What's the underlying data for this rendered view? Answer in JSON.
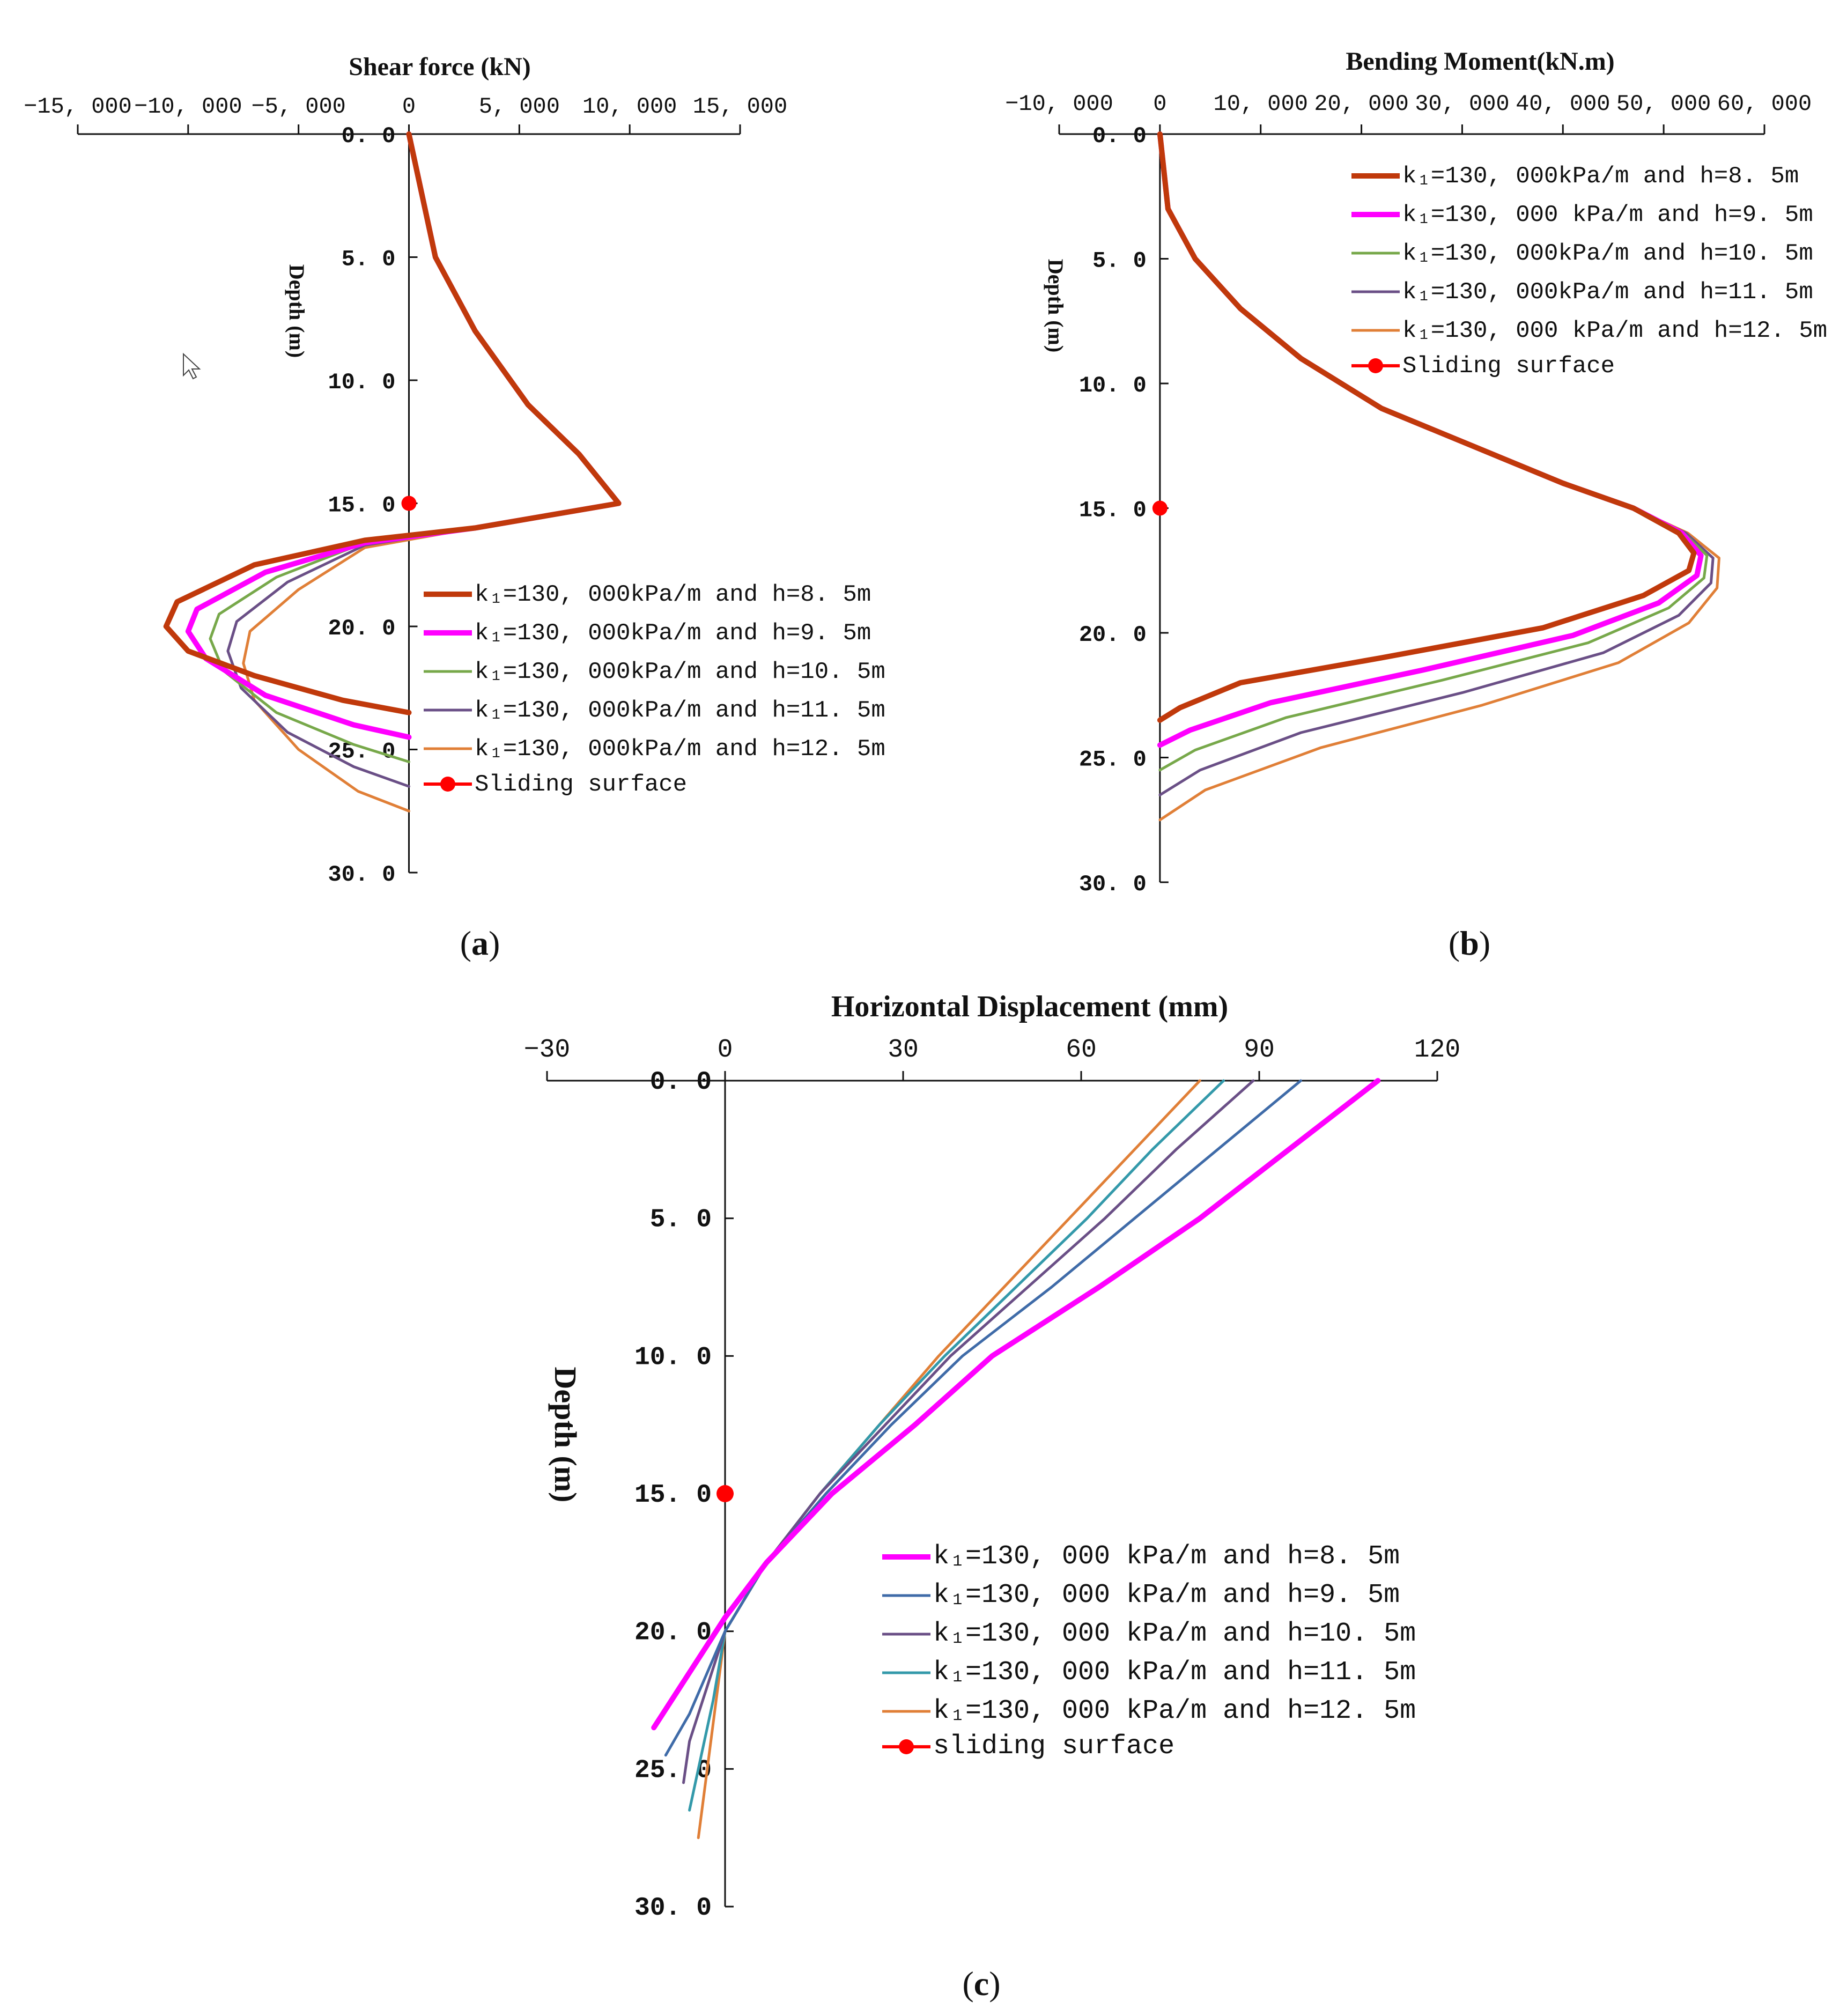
{
  "chart_data": [
    {
      "id": "a",
      "type": "line",
      "title": "Shear force (kN)",
      "ylabel": "Depth (m)",
      "caption": "a",
      "xticks": [
        "−15, 000",
        "−10, 000",
        "−5, 000",
        "0",
        "5, 000",
        "10, 000",
        "15, 000"
      ],
      "xtick_values": [
        -15000,
        -10000,
        -5000,
        0,
        5000,
        10000,
        15000
      ],
      "yticks": [
        "0. 0",
        "5. 0",
        "10. 0",
        "15. 0",
        "20. 0",
        "25. 0",
        "30. 0"
      ],
      "xlim": [
        -15000,
        15000
      ],
      "ylim": [
        0,
        30
      ],
      "series": [
        {
          "name": "k₁=130, 000kPa/m and h=8. 5m",
          "color": "#c0390b",
          "width": 10,
          "x": [
            0,
            1200,
            3000,
            5400,
            7700,
            9500,
            3000,
            -2000,
            -7000,
            -10500,
            -11000,
            -10000,
            -7000,
            -3000,
            0
          ],
          "y": [
            0,
            5,
            8,
            11,
            13,
            15,
            16,
            16.5,
            17.5,
            19,
            20,
            21,
            22,
            23,
            23.5
          ]
        },
        {
          "name": "k₁=130, 000kPa/m and h=9. 5m",
          "color": "#ff00ff",
          "width": 10,
          "x": [
            0,
            1200,
            3000,
            5400,
            7700,
            9500,
            3000,
            -2000,
            -6500,
            -9600,
            -10000,
            -9200,
            -6500,
            -2500,
            0
          ],
          "y": [
            0,
            5,
            8,
            11,
            13,
            15,
            16,
            16.6,
            17.8,
            19.3,
            20.2,
            21.3,
            22.8,
            24,
            24.5
          ]
        },
        {
          "name": "k₁=130, 000kPa/m and h=10. 5m",
          "color": "#77a84a",
          "width": 5,
          "x": [
            0,
            1200,
            3000,
            5400,
            7700,
            9500,
            3000,
            -2000,
            -6000,
            -8600,
            -9000,
            -8400,
            -6000,
            -2500,
            0
          ],
          "y": [
            0,
            5,
            8,
            11,
            13,
            15,
            16,
            16.6,
            18,
            19.5,
            20.5,
            21.8,
            23.5,
            24.8,
            25.5
          ]
        },
        {
          "name": "k₁=130, 000kPa/m and h=11. 5m",
          "color": "#6a4f86",
          "width": 5,
          "x": [
            0,
            1200,
            3000,
            5400,
            7700,
            9500,
            3000,
            -2000,
            -5500,
            -7800,
            -8200,
            -7600,
            -5500,
            -2500,
            0
          ],
          "y": [
            0,
            5,
            8,
            11,
            13,
            15,
            16,
            16.7,
            18.2,
            19.8,
            21,
            22.5,
            24.3,
            25.7,
            26.5
          ]
        },
        {
          "name": "k₁=130, 000kPa/m and h=12. 5m",
          "color": "#e07f37",
          "width": 5,
          "x": [
            0,
            1200,
            3000,
            5400,
            7700,
            9500,
            3000,
            -2000,
            -5000,
            -7200,
            -7500,
            -7000,
            -5000,
            -2300,
            0
          ],
          "y": [
            0,
            5,
            8,
            11,
            13,
            15,
            16,
            16.8,
            18.5,
            20.2,
            21.5,
            23,
            25,
            26.7,
            27.5
          ]
        }
      ],
      "marker": {
        "name": "Sliding surface",
        "x": 0,
        "y": 15,
        "color": "#ff0000"
      }
    },
    {
      "id": "b",
      "type": "line",
      "title": "Bending Moment(kN.m)",
      "ylabel": "Depth (m)",
      "caption": "b",
      "xticks": [
        "−10, 000",
        "0",
        "10, 000",
        "20, 000",
        "30, 000",
        "40, 000",
        "50, 000",
        "60, 000"
      ],
      "xtick_values": [
        -10000,
        0,
        10000,
        20000,
        30000,
        40000,
        50000,
        60000
      ],
      "yticks": [
        "0. 0",
        "5. 0",
        "10. 0",
        "15. 0",
        "20. 0",
        "25. 0",
        "30. 0"
      ],
      "xlim": [
        -10000,
        60000
      ],
      "ylim": [
        0,
        30
      ],
      "series": [
        {
          "name": "k₁=130, 000kPa/m and h=8. 5m",
          "color": "#c0390b",
          "width": 10,
          "x": [
            0,
            800,
            3500,
            8000,
            14000,
            22000,
            31000,
            40000,
            47000,
            51500,
            53000,
            52500,
            48000,
            38000,
            22000,
            8000,
            2000,
            0
          ],
          "y": [
            0,
            3,
            5,
            7,
            9,
            11,
            12.5,
            14,
            15,
            16,
            16.8,
            17.5,
            18.5,
            19.8,
            21,
            22,
            23,
            23.5
          ]
        },
        {
          "name": "k₁=130, 000 kPa/m and h=9. 5m",
          "color": "#ff00ff",
          "width": 10,
          "x": [
            0,
            800,
            3500,
            8000,
            14000,
            22000,
            31000,
            40000,
            47000,
            51800,
            53700,
            53300,
            49500,
            41000,
            26000,
            11000,
            3000,
            0
          ],
          "y": [
            0,
            3,
            5,
            7,
            9,
            11,
            12.5,
            14,
            15,
            16,
            16.9,
            17.7,
            18.8,
            20.1,
            21.5,
            22.8,
            23.9,
            24.5
          ]
        },
        {
          "name": "k₁=130, 000kPa/m and h=10. 5m",
          "color": "#77a84a",
          "width": 5,
          "x": [
            0,
            800,
            3500,
            8000,
            14000,
            22000,
            31000,
            40000,
            47000,
            52000,
            54300,
            54000,
            50500,
            42500,
            28000,
            12500,
            3500,
            0
          ],
          "y": [
            0,
            3,
            5,
            7,
            9,
            11,
            12.5,
            14,
            15,
            16,
            16.9,
            17.8,
            19,
            20.4,
            21.9,
            23.4,
            24.7,
            25.5
          ]
        },
        {
          "name": "k₁=130, 000kPa/m and h=11. 5m",
          "color": "#6a4f86",
          "width": 5,
          "x": [
            0,
            800,
            3500,
            8000,
            14000,
            22000,
            31000,
            40000,
            47000,
            52200,
            54900,
            54700,
            51500,
            44000,
            30000,
            14000,
            4000,
            0
          ],
          "y": [
            0,
            3,
            5,
            7,
            9,
            11,
            12.5,
            14,
            15,
            16,
            17,
            18,
            19.3,
            20.8,
            22.4,
            24,
            25.5,
            26.5
          ]
        },
        {
          "name": "k₁=130, 000 kPa/m and h=12. 5m",
          "color": "#e07f37",
          "width": 5,
          "x": [
            0,
            800,
            3500,
            8000,
            14000,
            22000,
            31000,
            40000,
            47000,
            52400,
            55500,
            55300,
            52500,
            45500,
            32000,
            16000,
            4500,
            0
          ],
          "y": [
            0,
            3,
            5,
            7,
            9,
            11,
            12.5,
            14,
            15,
            16,
            17,
            18.2,
            19.6,
            21.2,
            22.9,
            24.6,
            26.3,
            27.5
          ]
        }
      ],
      "marker": {
        "name": "Sliding surface",
        "x": 0,
        "y": 15,
        "color": "#ff0000"
      }
    },
    {
      "id": "c",
      "type": "line",
      "title": "Horizontal Displacement (mm)",
      "ylabel": "Depth (m)",
      "caption": "c",
      "xticks": [
        "−30",
        "0",
        "30",
        "60",
        "90",
        "120"
      ],
      "xtick_values": [
        -30,
        0,
        30,
        60,
        90,
        120
      ],
      "yticks": [
        "0. 0",
        "5. 0",
        "10. 0",
        "15. 0",
        "20. 0",
        "25. 0",
        "30. 0"
      ],
      "xlim": [
        -30,
        120
      ],
      "ylim": [
        0,
        30
      ],
      "series": [
        {
          "name": "k₁=130, 000 kPa/m and h=8. 5m",
          "color": "#ff00ff",
          "width": 10,
          "x": [
            110,
            95,
            80,
            63,
            45,
            32,
            18,
            7,
            0,
            -6,
            -12
          ],
          "y": [
            0,
            2.5,
            5,
            7.5,
            10,
            12.5,
            15,
            17.5,
            19.5,
            21.5,
            23.5
          ]
        },
        {
          "name": "k₁=130, 000 kPa/m and h=9. 5m",
          "color": "#3f6ba8",
          "width": 5,
          "x": [
            97,
            83,
            69,
            55,
            40,
            28,
            17,
            7,
            0,
            -3,
            -6,
            -10
          ],
          "y": [
            0,
            2.5,
            5,
            7.5,
            10,
            12.5,
            15,
            17.5,
            20,
            21.5,
            23,
            24.5
          ]
        },
        {
          "name": "k₁=130, 000 kPa/m and h=10. 5m",
          "color": "#6a4f86",
          "width": 5,
          "x": [
            89,
            76,
            64,
            51,
            38,
            27,
            16,
            7,
            0,
            -3,
            -6,
            -7
          ],
          "y": [
            0,
            2.5,
            5,
            7.5,
            10,
            12.5,
            15,
            17.5,
            20,
            22,
            24,
            25.5
          ]
        },
        {
          "name": "k₁=130, 000 kPa/m and h=11. 5m",
          "color": "#3399aa",
          "width": 5,
          "x": [
            84,
            72,
            61,
            49,
            37,
            26,
            16,
            7,
            0,
            -2,
            -4,
            -6
          ],
          "y": [
            0,
            2.5,
            5,
            7.5,
            10,
            12.5,
            15,
            17.5,
            20,
            22.5,
            24.5,
            26.5
          ]
        },
        {
          "name": "k₁=130, 000 kPa/m and h=12. 5m",
          "color": "#e07f37",
          "width": 5,
          "x": [
            80,
            69,
            58,
            47,
            36,
            26,
            16,
            7,
            0,
            -1.5,
            -3,
            -4.5
          ],
          "y": [
            0,
            2.5,
            5,
            7.5,
            10,
            12.5,
            15,
            17.5,
            20,
            22.5,
            25,
            27.5
          ]
        }
      ],
      "marker": {
        "name": "sliding surface",
        "x": 0,
        "y": 15,
        "color": "#ff0000"
      }
    }
  ]
}
